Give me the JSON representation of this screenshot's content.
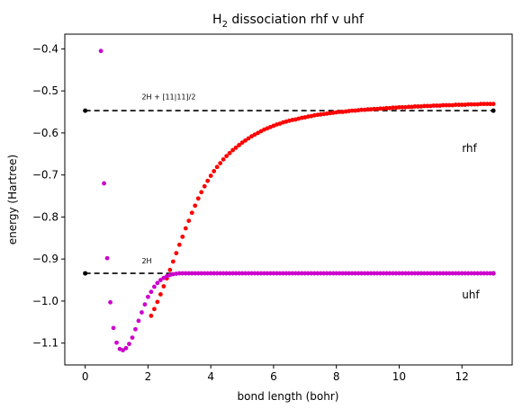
{
  "chart_data": {
    "type": "scatter",
    "title": "H",
    "title_sub": "2",
    "title_rest": " dissociation rhf v uhf",
    "xlabel": "bond length (bohr)",
    "ylabel": "energy (Hartree)",
    "xlim": [
      -0.65,
      13.6
    ],
    "ylim": [
      -1.152,
      -0.365
    ],
    "grid": false,
    "x_ticks": [
      0,
      2,
      4,
      6,
      8,
      10,
      12
    ],
    "y_ticks": [
      -1.1,
      -1.0,
      -0.9,
      -0.8,
      -0.7,
      -0.6,
      -0.5,
      -0.4
    ],
    "x_tick_labels": [
      "0",
      "2",
      "4",
      "6",
      "8",
      "10",
      "12"
    ],
    "y_tick_labels": [
      "−1.1",
      "−1.0",
      "−0.9",
      "−0.8",
      "−0.7",
      "−0.6",
      "−0.5",
      "−0.4"
    ],
    "reference_lines": [
      {
        "label": "2H + [11|11]/2",
        "x": [
          0,
          13
        ],
        "y": -0.547,
        "color": "#000000"
      },
      {
        "label": "2H",
        "x": [
          0,
          13
        ],
        "y": -0.934,
        "color": "#000000"
      }
    ],
    "series": [
      {
        "name": "rhf",
        "color": "#ff0000",
        "x": [
          2.1,
          2.2,
          2.3,
          2.4,
          2.5,
          2.6,
          2.7,
          2.8,
          2.9,
          3.0,
          3.1,
          3.2,
          3.3,
          3.4,
          3.5,
          3.6,
          3.7,
          3.8,
          3.9,
          4.0,
          4.1,
          4.2,
          4.3,
          4.4,
          4.5,
          4.6,
          4.7,
          4.8,
          4.9,
          5.0,
          5.1,
          5.2,
          5.3,
          5.4,
          5.5,
          5.6,
          5.7,
          5.8,
          5.9,
          6.0,
          6.1,
          6.2,
          6.3,
          6.4,
          6.5,
          6.6,
          6.7,
          6.8,
          6.9,
          7.0,
          7.1,
          7.2,
          7.3,
          7.4,
          7.5,
          7.6,
          7.7,
          7.8,
          7.9,
          8.0,
          8.1,
          8.2,
          8.3,
          8.4,
          8.5,
          8.6,
          8.7,
          8.8,
          8.9,
          9.0,
          9.1,
          9.2,
          9.3,
          9.4,
          9.5,
          9.6,
          9.7,
          9.8,
          9.9,
          10.0,
          10.1,
          10.2,
          10.3,
          10.4,
          10.5,
          10.6,
          10.7,
          10.8,
          10.9,
          11.0,
          11.1,
          11.2,
          11.3,
          11.4,
          11.5,
          11.6,
          11.7,
          11.8,
          11.9,
          12.0,
          12.1,
          12.2,
          12.3,
          12.4,
          12.5,
          12.6,
          12.7,
          12.8,
          12.9,
          13.0
        ],
        "y": [
          -1.035,
          -1.019,
          -1.002,
          -0.984,
          -0.965,
          -0.946,
          -0.926,
          -0.906,
          -0.886,
          -0.866,
          -0.847,
          -0.827,
          -0.809,
          -0.79,
          -0.773,
          -0.756,
          -0.741,
          -0.727,
          -0.714,
          -0.702,
          -0.691,
          -0.681,
          -0.672,
          -0.663,
          -0.655,
          -0.648,
          -0.641,
          -0.635,
          -0.629,
          -0.623,
          -0.618,
          -0.613,
          -0.608,
          -0.604,
          -0.6,
          -0.596,
          -0.592,
          -0.589,
          -0.586,
          -0.583,
          -0.58,
          -0.578,
          -0.575,
          -0.573,
          -0.571,
          -0.569,
          -0.568,
          -0.566,
          -0.564,
          -0.563,
          -0.561,
          -0.56,
          -0.558,
          -0.557,
          -0.556,
          -0.555,
          -0.554,
          -0.553,
          -0.552,
          -0.551,
          -0.55,
          -0.55,
          -0.549,
          -0.548,
          -0.547,
          -0.547,
          -0.546,
          -0.545,
          -0.545,
          -0.544,
          -0.544,
          -0.543,
          -0.543,
          -0.542,
          -0.542,
          -0.541,
          -0.541,
          -0.54,
          -0.54,
          -0.539,
          -0.539,
          -0.539,
          -0.538,
          -0.538,
          -0.537,
          -0.537,
          -0.537,
          -0.536,
          -0.536,
          -0.536,
          -0.535,
          -0.535,
          -0.535,
          -0.534,
          -0.534,
          -0.534,
          -0.534,
          -0.533,
          -0.533,
          -0.533,
          -0.533,
          -0.532,
          -0.532,
          -0.532,
          -0.532,
          -0.531,
          -0.531,
          -0.531,
          -0.531,
          -0.531
        ]
      },
      {
        "name": "uhf",
        "color": "#cc00cc",
        "x": [
          0.5,
          0.6,
          0.7,
          0.8,
          0.9,
          1.0,
          1.1,
          1.2,
          1.3,
          1.4,
          1.5,
          1.6,
          1.7,
          1.8,
          1.9,
          2.0,
          2.1,
          2.2,
          2.3,
          2.4,
          2.5,
          2.6,
          2.7,
          2.8,
          2.9,
          3.0,
          3.1,
          3.2,
          3.3,
          3.4,
          3.5,
          3.6,
          3.7,
          3.8,
          3.9,
          4.0,
          4.1,
          4.2,
          4.3,
          4.4,
          4.5,
          4.6,
          4.7,
          4.8,
          4.9,
          5.0,
          5.1,
          5.2,
          5.3,
          5.4,
          5.5,
          5.6,
          5.7,
          5.8,
          5.9,
          6.0,
          6.1,
          6.2,
          6.3,
          6.4,
          6.5,
          6.6,
          6.7,
          6.8,
          6.9,
          7.0,
          7.1,
          7.2,
          7.3,
          7.4,
          7.5,
          7.6,
          7.7,
          7.8,
          7.9,
          8.0,
          8.1,
          8.2,
          8.3,
          8.4,
          8.5,
          8.6,
          8.7,
          8.8,
          8.9,
          9.0,
          9.1,
          9.2,
          9.3,
          9.4,
          9.5,
          9.6,
          9.7,
          9.8,
          9.9,
          10.0,
          10.1,
          10.2,
          10.3,
          10.4,
          10.5,
          10.6,
          10.7,
          10.8,
          10.9,
          11.0,
          11.1,
          11.2,
          11.3,
          11.4,
          11.5,
          11.6,
          11.7,
          11.8,
          11.9,
          12.0,
          12.1,
          12.2,
          12.3,
          12.4,
          12.5,
          12.6,
          12.7,
          12.8,
          12.9,
          13.0
        ],
        "y": [
          -0.405,
          -0.72,
          -0.898,
          -1.003,
          -1.064,
          -1.099,
          -1.114,
          -1.117,
          -1.112,
          -1.102,
          -1.087,
          -1.067,
          -1.047,
          -1.027,
          -1.008,
          -0.99,
          -0.978,
          -0.966,
          -0.957,
          -0.95,
          -0.945,
          -0.941,
          -0.938,
          -0.936,
          -0.935,
          -0.934,
          -0.934,
          -0.934,
          -0.934,
          -0.934,
          -0.934,
          -0.934,
          -0.934,
          -0.934,
          -0.934,
          -0.934,
          -0.934,
          -0.934,
          -0.934,
          -0.934,
          -0.934,
          -0.934,
          -0.934,
          -0.934,
          -0.934,
          -0.934,
          -0.934,
          -0.934,
          -0.934,
          -0.934,
          -0.934,
          -0.934,
          -0.934,
          -0.934,
          -0.934,
          -0.934,
          -0.934,
          -0.934,
          -0.934,
          -0.934,
          -0.934,
          -0.934,
          -0.934,
          -0.934,
          -0.934,
          -0.934,
          -0.934,
          -0.934,
          -0.934,
          -0.934,
          -0.934,
          -0.934,
          -0.934,
          -0.934,
          -0.934,
          -0.934,
          -0.934,
          -0.934,
          -0.934,
          -0.934,
          -0.934,
          -0.934,
          -0.934,
          -0.934,
          -0.934,
          -0.934,
          -0.934,
          -0.934,
          -0.934,
          -0.934,
          -0.934,
          -0.934,
          -0.934,
          -0.934,
          -0.934,
          -0.934,
          -0.934,
          -0.934,
          -0.934,
          -0.934,
          -0.934,
          -0.934,
          -0.934,
          -0.934,
          -0.934,
          -0.934,
          -0.934,
          -0.934,
          -0.934,
          -0.934,
          -0.934,
          -0.934,
          -0.934,
          -0.934,
          -0.934,
          -0.934,
          -0.934,
          -0.934,
          -0.934,
          -0.934,
          -0.934,
          -0.934,
          -0.934,
          -0.934,
          -0.934,
          -0.934
        ]
      }
    ],
    "annotations": [
      {
        "text": "2H + [11|11]/2",
        "x": 1.8,
        "y": -0.52,
        "size": "small"
      },
      {
        "text": "2H",
        "x": 1.8,
        "y": -0.91,
        "size": "small"
      },
      {
        "text": "rhf",
        "x": 12.0,
        "y": -0.645,
        "size": "normal"
      },
      {
        "text": "uhf",
        "x": 12.0,
        "y": -0.994,
        "size": "normal"
      }
    ]
  }
}
